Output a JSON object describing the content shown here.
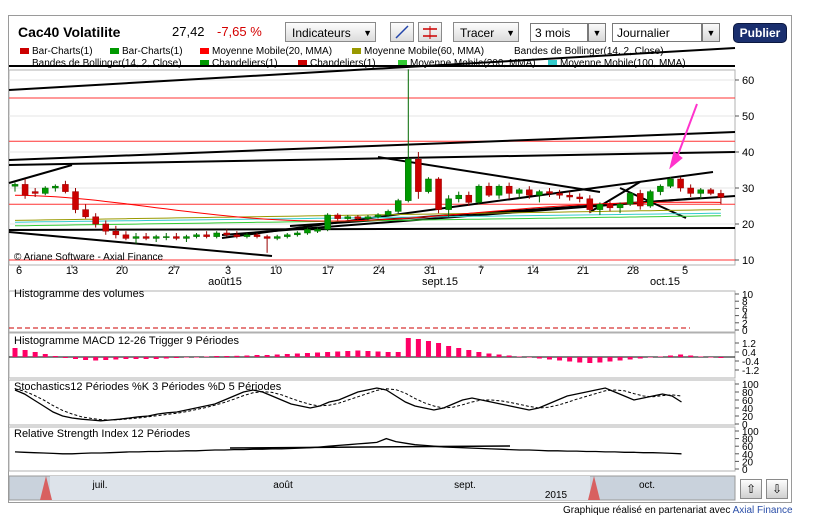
{
  "header": {
    "title": "Cac40 Volatilite",
    "last": "27,42",
    "change": "-7,65 %",
    "indicators_label": "Indicateurs",
    "draw_label": "Tracer",
    "period": "3 mois",
    "interval": "Journalier",
    "publish_label": "Publier"
  },
  "legend": {
    "row1": [
      {
        "label": "Bar-Charts(1)",
        "color": "#cc0000"
      },
      {
        "label": "Bar-Charts(1)",
        "color": "#009900"
      },
      {
        "label": "Moyenne Mobile(20, MMA)",
        "color": "#ff0000"
      },
      {
        "label": "Moyenne Mobile(60, MMA)",
        "color": "#999900"
      },
      {
        "label": "Bandes de Bollinger(14, 2, Close)",
        "color": "#ffffff"
      }
    ],
    "row2": [
      {
        "label": "Bandes de Bollinger(14, 2, Close)",
        "color": "#ffffff"
      },
      {
        "label": "Chandeliers(1)",
        "color": "#009900"
      },
      {
        "label": "Chandeliers(1)",
        "color": "#cc0000"
      },
      {
        "label": "Moyenne Mobile(200, MMA)",
        "color": "#33cc33"
      },
      {
        "label": "Moyenne Mobile(100, MMA)",
        "color": "#33cccc"
      }
    ]
  },
  "chart_data": {
    "type": "candlestick",
    "price_axis": {
      "ticks": [
        "60",
        "50",
        "40",
        "30",
        "20",
        "10"
      ],
      "ylim": [
        10,
        65
      ]
    },
    "x_ticks": [
      "6",
      "13",
      "20",
      "27",
      "3",
      "10",
      "17",
      "24",
      "31",
      "7",
      "14",
      "21",
      "28",
      "5"
    ],
    "month_labels": [
      "août15",
      "sept.15",
      "oct.15"
    ],
    "candles": [
      {
        "o": 30.5,
        "h": 31.5,
        "l": 29,
        "c": 31
      },
      {
        "o": 31,
        "h": 32.5,
        "l": 27,
        "c": 28
      },
      {
        "o": 29,
        "h": 30,
        "l": 27.5,
        "c": 28.5
      },
      {
        "o": 28.5,
        "h": 30.5,
        "l": 28,
        "c": 30
      },
      {
        "o": 30,
        "h": 31,
        "l": 29,
        "c": 30.5
      },
      {
        "o": 31,
        "h": 32,
        "l": 28.5,
        "c": 29
      },
      {
        "o": 29,
        "h": 30,
        "l": 23,
        "c": 24
      },
      {
        "o": 24,
        "h": 25.5,
        "l": 21.5,
        "c": 22
      },
      {
        "o": 22,
        "h": 23,
        "l": 19,
        "c": 20
      },
      {
        "o": 20,
        "h": 21,
        "l": 17,
        "c": 18
      },
      {
        "o": 18,
        "h": 19.5,
        "l": 16,
        "c": 17
      },
      {
        "o": 17,
        "h": 18,
        "l": 15.5,
        "c": 16
      },
      {
        "o": 16,
        "h": 17.5,
        "l": 14.5,
        "c": 16.5
      },
      {
        "o": 16.5,
        "h": 17.5,
        "l": 15.5,
        "c": 16
      },
      {
        "o": 16,
        "h": 17,
        "l": 15,
        "c": 16.5
      },
      {
        "o": 16.5,
        "h": 17.5,
        "l": 15.5,
        "c": 16.5
      },
      {
        "o": 16.5,
        "h": 17.5,
        "l": 15.5,
        "c": 16
      },
      {
        "o": 16,
        "h": 17,
        "l": 15,
        "c": 16.5
      },
      {
        "o": 16.5,
        "h": 17.5,
        "l": 16,
        "c": 17
      },
      {
        "o": 17,
        "h": 18,
        "l": 16,
        "c": 16.5
      },
      {
        "o": 16.5,
        "h": 18,
        "l": 16,
        "c": 17.5
      },
      {
        "o": 17.5,
        "h": 18.5,
        "l": 16.5,
        "c": 17
      },
      {
        "o": 17,
        "h": 18,
        "l": 16,
        "c": 16.5
      },
      {
        "o": 16.5,
        "h": 17.5,
        "l": 16,
        "c": 17
      },
      {
        "o": 17,
        "h": 17.5,
        "l": 16,
        "c": 16.5
      },
      {
        "o": 16.5,
        "h": 17,
        "l": 12,
        "c": 16
      },
      {
        "o": 16,
        "h": 17,
        "l": 15.5,
        "c": 16.5
      },
      {
        "o": 16.5,
        "h": 17.5,
        "l": 16,
        "c": 17
      },
      {
        "o": 17,
        "h": 18,
        "l": 16.5,
        "c": 17.5
      },
      {
        "o": 17.5,
        "h": 19,
        "l": 17,
        "c": 18.5
      },
      {
        "o": 18,
        "h": 19,
        "l": 17.5,
        "c": 18.5
      },
      {
        "o": 18.5,
        "h": 23,
        "l": 18,
        "c": 22.5
      },
      {
        "o": 22.5,
        "h": 23,
        "l": 21,
        "c": 21.5
      },
      {
        "o": 21.5,
        "h": 22.5,
        "l": 21,
        "c": 22
      },
      {
        "o": 22,
        "h": 22.5,
        "l": 21,
        "c": 21.5
      },
      {
        "o": 21.5,
        "h": 22.5,
        "l": 21,
        "c": 22
      },
      {
        "o": 22,
        "h": 23,
        "l": 21.5,
        "c": 22.5
      },
      {
        "o": 22.5,
        "h": 24,
        "l": 22,
        "c": 23.5
      },
      {
        "o": 23.5,
        "h": 27,
        "l": 23,
        "c": 26.5
      },
      {
        "o": 26.5,
        "h": 63,
        "l": 26,
        "c": 38
      },
      {
        "o": 38,
        "h": 40,
        "l": 27,
        "c": 29
      },
      {
        "o": 29,
        "h": 33,
        "l": 28.5,
        "c": 32.5
      },
      {
        "o": 32.5,
        "h": 33,
        "l": 23,
        "c": 24
      },
      {
        "o": 24,
        "h": 28,
        "l": 22,
        "c": 27
      },
      {
        "o": 27,
        "h": 29,
        "l": 26,
        "c": 28
      },
      {
        "o": 28,
        "h": 29,
        "l": 25,
        "c": 26
      },
      {
        "o": 26,
        "h": 31,
        "l": 25.5,
        "c": 30.5
      },
      {
        "o": 30.5,
        "h": 31.5,
        "l": 27.5,
        "c": 28
      },
      {
        "o": 28,
        "h": 31,
        "l": 27,
        "c": 30.5
      },
      {
        "o": 30.5,
        "h": 31.5,
        "l": 27,
        "c": 28.5
      },
      {
        "o": 28.5,
        "h": 30,
        "l": 27,
        "c": 29.5
      },
      {
        "o": 29.5,
        "h": 30.5,
        "l": 27,
        "c": 28
      },
      {
        "o": 28,
        "h": 29.5,
        "l": 26,
        "c": 29
      },
      {
        "o": 29,
        "h": 30,
        "l": 27.5,
        "c": 28.5
      },
      {
        "o": 28.5,
        "h": 29.5,
        "l": 27,
        "c": 28
      },
      {
        "o": 28,
        "h": 29,
        "l": 26.5,
        "c": 27.5
      },
      {
        "o": 27.5,
        "h": 28.5,
        "l": 26,
        "c": 27
      },
      {
        "o": 27,
        "h": 28,
        "l": 23,
        "c": 24
      },
      {
        "o": 24,
        "h": 26,
        "l": 22.5,
        "c": 25.5
      },
      {
        "o": 25.5,
        "h": 26.5,
        "l": 23.5,
        "c": 24.5
      },
      {
        "o": 24.5,
        "h": 26,
        "l": 23,
        "c": 25.5
      },
      {
        "o": 25.5,
        "h": 29,
        "l": 25,
        "c": 28.5
      },
      {
        "o": 28.5,
        "h": 29.5,
        "l": 24,
        "c": 25
      },
      {
        "o": 25,
        "h": 29.5,
        "l": 24.5,
        "c": 29
      },
      {
        "o": 29,
        "h": 31,
        "l": 28,
        "c": 30.5
      },
      {
        "o": 30.5,
        "h": 33,
        "l": 30,
        "c": 32.5
      },
      {
        "o": 32.5,
        "h": 33,
        "l": 29,
        "c": 30
      },
      {
        "o": 30,
        "h": 31,
        "l": 27.5,
        "c": 28.5
      },
      {
        "o": 28.5,
        "h": 30,
        "l": 27,
        "c": 29.5
      },
      {
        "o": 29.5,
        "h": 30,
        "l": 28,
        "c": 28.5
      },
      {
        "o": 28.5,
        "h": 29.5,
        "l": 25.5,
        "c": 27.4
      }
    ],
    "panels": {
      "volume": {
        "title": "Histogramme des volumes",
        "ticks": [
          "10",
          "8",
          "6",
          "4",
          "2",
          "0"
        ]
      },
      "macd": {
        "title": "Histogramme MACD 12-26",
        "trigger": "Trigger 9 Périodes",
        "ticks": [
          "1.2",
          "0.4",
          "-0.4",
          "-1.2"
        ],
        "values": [
          0.9,
          0.7,
          0.5,
          0.3,
          0.1,
          -0.1,
          -0.2,
          -0.3,
          -0.35,
          -0.3,
          -0.25,
          -0.2,
          -0.2,
          -0.2,
          -0.2,
          -0.15,
          -0.1,
          -0.05,
          0,
          0.05,
          0.1,
          0.1,
          0.12,
          0.15,
          0.2,
          0.2,
          0.25,
          0.3,
          0.35,
          0.4,
          0.45,
          0.5,
          0.55,
          0.6,
          0.65,
          0.6,
          0.55,
          0.5,
          0.5,
          1.9,
          1.8,
          1.6,
          1.4,
          1.1,
          0.9,
          0.7,
          0.5,
          0.35,
          0.25,
          0.15,
          0.05,
          -0.05,
          -0.15,
          -0.25,
          -0.35,
          -0.45,
          -0.55,
          -0.6,
          -0.55,
          -0.45,
          -0.35,
          -0.25,
          -0.15,
          -0.05,
          0.05,
          0.15,
          0.25,
          0.15,
          0.05,
          -0.05,
          -0.1
        ]
      },
      "stochastics": {
        "title": "Stochastics12 Périodes",
        "k_label": "%K 3 Périodes",
        "d_label": "%D 5 Périodes",
        "ticks": [
          "100",
          "80",
          "60",
          "40",
          "20",
          "0"
        ],
        "k": [
          85,
          75,
          60,
          45,
          30,
          20,
          15,
          12,
          10,
          8,
          10,
          12,
          15,
          18,
          20,
          25,
          28,
          30,
          35,
          40,
          45,
          50,
          60,
          70,
          80,
          85,
          80,
          70,
          60,
          50,
          45,
          40,
          45,
          55,
          60,
          70,
          80,
          85,
          90,
          85,
          70,
          55,
          45,
          40,
          35,
          40,
          50,
          60,
          65,
          60,
          55,
          50,
          45,
          40,
          35,
          40,
          50,
          60,
          70,
          75,
          80,
          85,
          90,
          80,
          70,
          60,
          65,
          70,
          75,
          70,
          55
        ],
        "d": [
          88,
          82,
          72,
          60,
          46,
          34,
          25,
          18,
          14,
          11,
          10,
          11,
          13,
          15,
          18,
          21,
          24,
          27,
          31,
          36,
          41,
          47,
          54,
          62,
          71,
          78,
          81,
          79,
          73,
          64,
          56,
          49,
          45,
          47,
          52,
          60,
          68,
          76,
          84,
          88,
          86,
          77,
          64,
          53,
          45,
          40,
          42,
          48,
          55,
          60,
          60,
          58,
          54,
          49,
          44,
          40,
          42,
          47,
          54,
          62,
          69,
          76,
          83,
          85,
          83,
          76,
          70,
          68,
          71,
          73,
          70
        ]
      },
      "rsi": {
        "title": "Relative Strength Index 12 Périodes",
        "ticks": [
          "100",
          "80",
          "60",
          "40",
          "20",
          "0"
        ],
        "values": [
          45,
          44,
          43,
          42,
          41,
          40,
          40,
          41,
          42,
          42,
          43,
          44,
          45,
          45,
          46,
          46,
          47,
          47,
          48,
          48,
          49,
          50,
          50,
          51,
          51,
          52,
          52,
          53,
          53,
          54,
          55,
          56,
          58,
          60,
          62,
          64,
          66,
          68,
          70,
          80,
          72,
          68,
          64,
          62,
          60,
          58,
          57,
          56,
          55,
          54,
          53,
          52,
          51,
          50,
          50,
          49,
          48,
          48,
          47,
          47,
          46,
          46,
          45,
          45,
          44,
          44,
          43,
          43,
          42,
          41,
          40
        ]
      }
    },
    "navigator": {
      "months": [
        "juil.",
        "août",
        "sept.",
        "oct."
      ],
      "year": "2015"
    }
  },
  "footer": {
    "text": "Graphique réalisé en partenariat avec",
    "link": "Axial Finance"
  },
  "watermark": "© Ariane Software - Axial Finance"
}
